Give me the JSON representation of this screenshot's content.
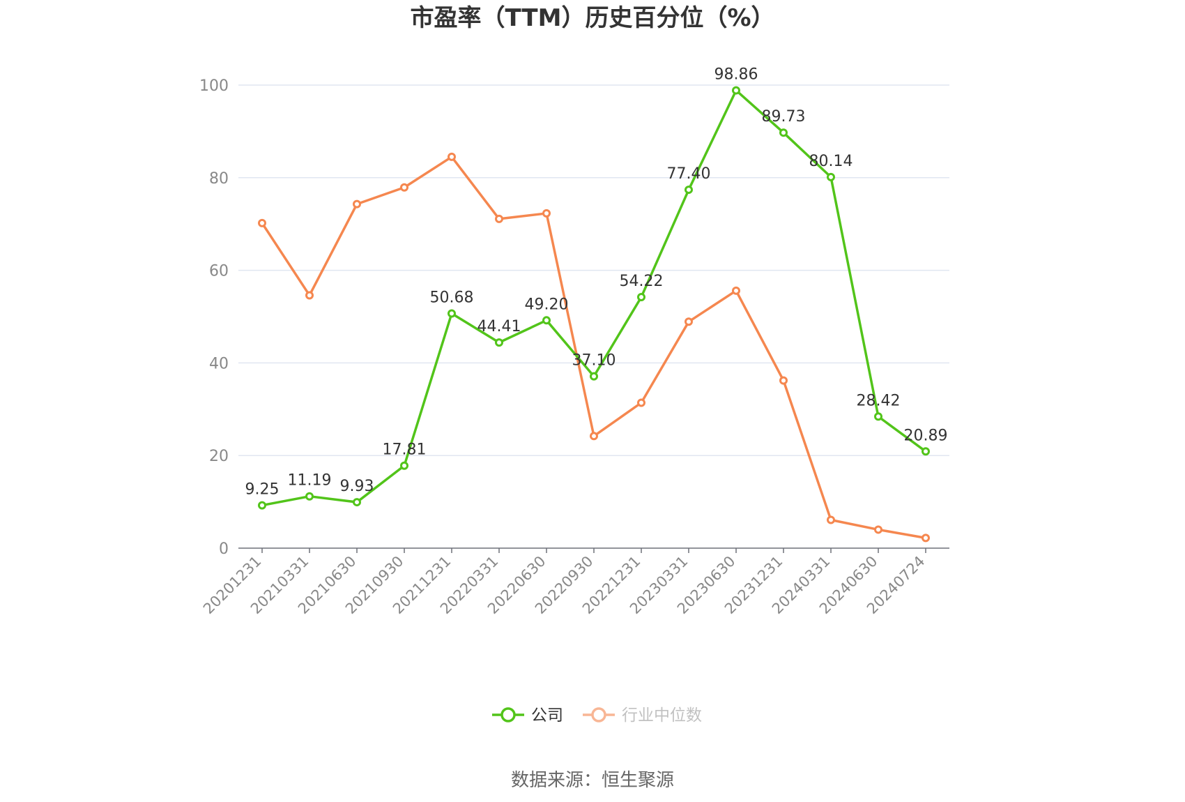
{
  "chart_data": {
    "type": "line",
    "title": "市盈率（TTM）历史百分位（%）",
    "source": "数据来源：恒生聚源",
    "ylim": [
      0,
      100
    ],
    "yticks": [
      0,
      20,
      40,
      60,
      80,
      100
    ],
    "grid": true,
    "legend_position": "bottom",
    "categories": [
      "20201231",
      "20210331",
      "20210630",
      "20210930",
      "20211231",
      "20220331",
      "20220630",
      "20220930",
      "20221231",
      "20230331",
      "20230630",
      "20231231",
      "20240331",
      "20240630",
      "20240724"
    ],
    "series": [
      {
        "name": "公司",
        "color": "#52c41a",
        "show_labels": true,
        "values": [
          9.25,
          11.19,
          9.93,
          17.81,
          50.68,
          44.41,
          49.2,
          37.1,
          54.22,
          77.4,
          98.86,
          89.73,
          80.14,
          28.42,
          20.89
        ],
        "labels": [
          "9.25",
          "11.19",
          "9.93",
          "17.81",
          "50.68",
          "44.41",
          "49.20",
          "37.10",
          "54.22",
          "77.40",
          "98.86",
          "89.73",
          "80.14",
          "28.42",
          "20.89"
        ]
      },
      {
        "name": "行业中位数",
        "color": "#f5874f",
        "show_labels": false,
        "values": [
          70.2,
          54.6,
          74.3,
          77.9,
          84.5,
          71.1,
          72.3,
          24.2,
          31.4,
          48.9,
          55.6,
          36.2,
          6.1,
          4.0,
          2.2
        ]
      }
    ]
  }
}
